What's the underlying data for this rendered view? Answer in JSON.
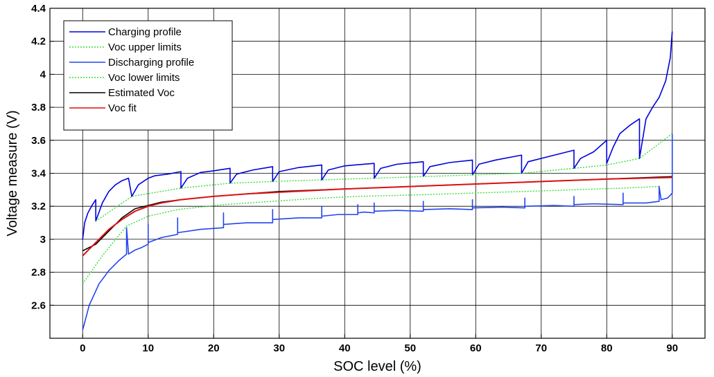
{
  "chart_data": {
    "type": "line",
    "xlabel": "SOC level (%)",
    "ylabel": "Voltage measure (V)",
    "xlim": [
      -5,
      95
    ],
    "ylim": [
      2.4,
      4.4
    ],
    "xticks": [
      0,
      10,
      20,
      30,
      40,
      50,
      60,
      70,
      80,
      90
    ],
    "yticks": [
      2.6,
      2.8,
      3,
      3.2,
      3.4,
      3.6,
      3.8,
      4,
      4.2,
      4.4
    ],
    "xtick_labels": [
      "0",
      "10",
      "20",
      "30",
      "40",
      "50",
      "60",
      "70",
      "80",
      "90"
    ],
    "ytick_labels": [
      "2.6",
      "2.8",
      "3",
      "3.2",
      "3.4",
      "3.6",
      "3.8",
      "4",
      "4.2",
      "4.4"
    ],
    "grid": true,
    "legend_position": "top-left",
    "series": [
      {
        "name": "Charging profile",
        "color": "#0000dd",
        "style": "solid",
        "points": [
          [
            0,
            3.0
          ],
          [
            0.3,
            3.1
          ],
          [
            0.8,
            3.16
          ],
          [
            1.5,
            3.21
          ],
          [
            2.0,
            3.24
          ],
          [
            2.0,
            3.11
          ],
          [
            3.0,
            3.22
          ],
          [
            4.0,
            3.29
          ],
          [
            5.0,
            3.33
          ],
          [
            6.0,
            3.355
          ],
          [
            7.0,
            3.37
          ],
          [
            7.5,
            3.26
          ],
          [
            8.5,
            3.33
          ],
          [
            10,
            3.37
          ],
          [
            11,
            3.385
          ],
          [
            13,
            3.395
          ],
          [
            15,
            3.41
          ],
          [
            15,
            3.31
          ],
          [
            16,
            3.37
          ],
          [
            18,
            3.405
          ],
          [
            20,
            3.415
          ],
          [
            22.5,
            3.43
          ],
          [
            22.5,
            3.34
          ],
          [
            23.5,
            3.395
          ],
          [
            26,
            3.42
          ],
          [
            29,
            3.44
          ],
          [
            29,
            3.35
          ],
          [
            30,
            3.41
          ],
          [
            33,
            3.435
          ],
          [
            36.5,
            3.45
          ],
          [
            36.5,
            3.36
          ],
          [
            37.5,
            3.42
          ],
          [
            40,
            3.445
          ],
          [
            44.5,
            3.46
          ],
          [
            44.5,
            3.37
          ],
          [
            45.5,
            3.43
          ],
          [
            48,
            3.455
          ],
          [
            52,
            3.47
          ],
          [
            52,
            3.38
          ],
          [
            53,
            3.44
          ],
          [
            56,
            3.465
          ],
          [
            59.5,
            3.48
          ],
          [
            59.5,
            3.39
          ],
          [
            60.5,
            3.455
          ],
          [
            63,
            3.48
          ],
          [
            67,
            3.51
          ],
          [
            67,
            3.4
          ],
          [
            68,
            3.47
          ],
          [
            71,
            3.5
          ],
          [
            75,
            3.54
          ],
          [
            75,
            3.43
          ],
          [
            76,
            3.49
          ],
          [
            78,
            3.53
          ],
          [
            80,
            3.6
          ],
          [
            80,
            3.46
          ],
          [
            81,
            3.56
          ],
          [
            82,
            3.64
          ],
          [
            83.5,
            3.69
          ],
          [
            85,
            3.73
          ],
          [
            85,
            3.49
          ],
          [
            86,
            3.73
          ],
          [
            87,
            3.8
          ],
          [
            88,
            3.86
          ],
          [
            89,
            3.96
          ],
          [
            89.7,
            4.1
          ],
          [
            90,
            4.26
          ]
        ]
      },
      {
        "name": "Voc upper limits",
        "color": "#33dd33",
        "style": "dotted",
        "points": [
          [
            2,
            3.11
          ],
          [
            7.5,
            3.26
          ],
          [
            15,
            3.31
          ],
          [
            22.5,
            3.34
          ],
          [
            29,
            3.35
          ],
          [
            36.5,
            3.36
          ],
          [
            44.5,
            3.37
          ],
          [
            52,
            3.38
          ],
          [
            59.5,
            3.39
          ],
          [
            67,
            3.4
          ],
          [
            75,
            3.43
          ],
          [
            80,
            3.45
          ],
          [
            85,
            3.49
          ],
          [
            90,
            3.64
          ]
        ]
      },
      {
        "name": "Discharging profile",
        "color": "#2244ee",
        "style": "solid",
        "points": [
          [
            90,
            3.64
          ],
          [
            90,
            3.28
          ],
          [
            89.3,
            3.25
          ],
          [
            88.3,
            3.24
          ],
          [
            88,
            3.32
          ],
          [
            88,
            3.23
          ],
          [
            86,
            3.22
          ],
          [
            82.5,
            3.22
          ],
          [
            82.5,
            3.28
          ],
          [
            82.5,
            3.21
          ],
          [
            78,
            3.215
          ],
          [
            75,
            3.21
          ],
          [
            75,
            3.26
          ],
          [
            75,
            3.2
          ],
          [
            72,
            3.205
          ],
          [
            67.5,
            3.2
          ],
          [
            67.5,
            3.25
          ],
          [
            67.5,
            3.19
          ],
          [
            64,
            3.195
          ],
          [
            59.5,
            3.19
          ],
          [
            59.5,
            3.24
          ],
          [
            59.5,
            3.18
          ],
          [
            56,
            3.185
          ],
          [
            52,
            3.18
          ],
          [
            52,
            3.23
          ],
          [
            52,
            3.17
          ],
          [
            48,
            3.175
          ],
          [
            44.5,
            3.17
          ],
          [
            44.5,
            3.22
          ],
          [
            44.5,
            3.16
          ],
          [
            43,
            3.165
          ],
          [
            42,
            3.16
          ],
          [
            42,
            3.21
          ],
          [
            42,
            3.15
          ],
          [
            39,
            3.15
          ],
          [
            36.5,
            3.14
          ],
          [
            36.5,
            3.2
          ],
          [
            36.5,
            3.13
          ],
          [
            33,
            3.13
          ],
          [
            29,
            3.12
          ],
          [
            29,
            3.18
          ],
          [
            29,
            3.1
          ],
          [
            25,
            3.1
          ],
          [
            21.5,
            3.09
          ],
          [
            21.5,
            3.16
          ],
          [
            21.5,
            3.07
          ],
          [
            18,
            3.06
          ],
          [
            14.5,
            3.04
          ],
          [
            14.5,
            3.13
          ],
          [
            14.5,
            3.03
          ],
          [
            12,
            3.01
          ],
          [
            10,
            2.98
          ],
          [
            10,
            3.09
          ],
          [
            10,
            2.97
          ],
          [
            9,
            2.95
          ],
          [
            8,
            2.935
          ],
          [
            7,
            2.91
          ],
          [
            6.7,
            3.07
          ],
          [
            6.7,
            2.91
          ],
          [
            5.5,
            2.87
          ],
          [
            4,
            2.81
          ],
          [
            2.5,
            2.73
          ],
          [
            1,
            2.6
          ],
          [
            0,
            2.45
          ]
        ]
      },
      {
        "name": "Voc lower limits",
        "color": "#33dd33",
        "style": "dotted",
        "points": [
          [
            0,
            2.73
          ],
          [
            3,
            2.9
          ],
          [
            6.7,
            3.08
          ],
          [
            10,
            3.14
          ],
          [
            14.5,
            3.18
          ],
          [
            21.5,
            3.21
          ],
          [
            29,
            3.23
          ],
          [
            36.5,
            3.25
          ],
          [
            42,
            3.26
          ],
          [
            52,
            3.27
          ],
          [
            59.5,
            3.28
          ],
          [
            67.5,
            3.29
          ],
          [
            75,
            3.3
          ],
          [
            82.5,
            3.31
          ],
          [
            88,
            3.32
          ]
        ]
      },
      {
        "name": "Estimated Voc",
        "color": "#000000",
        "style": "solid",
        "points": [
          [
            0,
            2.93
          ],
          [
            2,
            2.97
          ],
          [
            4,
            3.05
          ],
          [
            6,
            3.13
          ],
          [
            8,
            3.185
          ],
          [
            10,
            3.205
          ],
          [
            12,
            3.225
          ],
          [
            15,
            3.24
          ],
          [
            20,
            3.26
          ],
          [
            25,
            3.275
          ],
          [
            30,
            3.29
          ],
          [
            40,
            3.305
          ],
          [
            50,
            3.32
          ],
          [
            60,
            3.335
          ],
          [
            70,
            3.35
          ],
          [
            80,
            3.365
          ],
          [
            90,
            3.38
          ]
        ]
      },
      {
        "name": "Voc fit",
        "color": "#dd1111",
        "style": "solid",
        "points": [
          [
            0,
            2.9
          ],
          [
            2,
            2.98
          ],
          [
            4,
            3.06
          ],
          [
            6,
            3.12
          ],
          [
            8,
            3.17
          ],
          [
            10,
            3.2
          ],
          [
            12,
            3.22
          ],
          [
            15,
            3.24
          ],
          [
            20,
            3.26
          ],
          [
            25,
            3.275
          ],
          [
            30,
            3.285
          ],
          [
            40,
            3.305
          ],
          [
            50,
            3.32
          ],
          [
            60,
            3.335
          ],
          [
            70,
            3.35
          ],
          [
            80,
            3.365
          ],
          [
            90,
            3.375
          ]
        ]
      }
    ]
  }
}
